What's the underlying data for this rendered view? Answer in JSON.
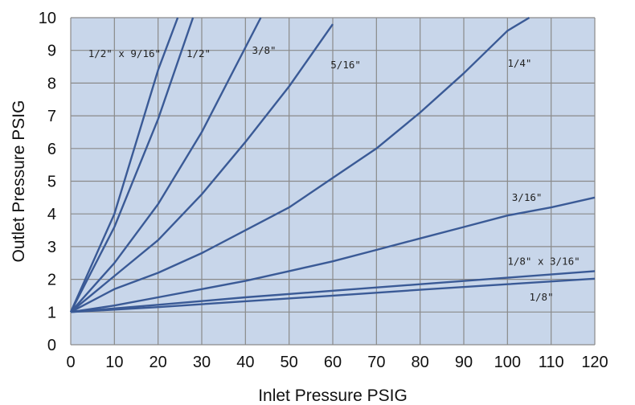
{
  "chart_data": {
    "type": "line",
    "title": "",
    "xlabel": "Inlet Pressure PSIG",
    "ylabel": "Outlet Pressure PSIG",
    "xlim": [
      0,
      120
    ],
    "ylim": [
      0,
      10
    ],
    "x_ticks": [
      0,
      10,
      20,
      30,
      40,
      50,
      60,
      70,
      80,
      90,
      100,
      110,
      120
    ],
    "y_ticks": [
      0,
      1,
      2,
      3,
      4,
      5,
      6,
      7,
      8,
      9,
      10
    ],
    "grid": true,
    "legend": "none",
    "plot_background": "#c8d6ea",
    "grid_color": "#8a8a8a",
    "line_color": "#3a5a96",
    "series": [
      {
        "name": "1/2\" x 9/16\"",
        "x": [
          0,
          10,
          20,
          24.5
        ],
        "y": [
          1,
          4.0,
          8.4,
          10
        ]
      },
      {
        "name": "1/2\"",
        "x": [
          0,
          10,
          20,
          28
        ],
        "y": [
          1,
          3.6,
          6.9,
          10
        ]
      },
      {
        "name": "3/8\"",
        "x": [
          0,
          10,
          20,
          30,
          43.5
        ],
        "y": [
          1,
          2.5,
          4.3,
          6.5,
          10
        ]
      },
      {
        "name": "5/16\"",
        "x": [
          0,
          10,
          20,
          30,
          40,
          50,
          60
        ],
        "y": [
          1,
          2.1,
          3.2,
          4.6,
          6.2,
          7.9,
          9.8
        ]
      },
      {
        "name": "1/4\"",
        "x": [
          0,
          10,
          20,
          30,
          40,
          50,
          60,
          70,
          80,
          90,
          100,
          105
        ],
        "y": [
          1,
          1.7,
          2.2,
          2.8,
          3.5,
          4.2,
          5.1,
          6.0,
          7.1,
          8.3,
          9.6,
          10
        ]
      },
      {
        "name": "3/16\"",
        "x": [
          0,
          10,
          20,
          30,
          40,
          50,
          60,
          70,
          80,
          90,
          100,
          110,
          120
        ],
        "y": [
          1,
          1.2,
          1.45,
          1.7,
          1.95,
          2.25,
          2.55,
          2.9,
          3.25,
          3.6,
          3.95,
          4.2,
          4.5
        ]
      },
      {
        "name": "1/8\" x 3/16\"",
        "x": [
          0,
          20,
          40,
          60,
          80,
          100,
          120
        ],
        "y": [
          1,
          1.22,
          1.45,
          1.65,
          1.85,
          2.05,
          2.25
        ]
      },
      {
        "name": "1/8\"",
        "x": [
          0,
          20,
          40,
          60,
          80,
          100,
          120
        ],
        "y": [
          1,
          1.15,
          1.33,
          1.5,
          1.68,
          1.85,
          2.02
        ]
      }
    ],
    "annotations": [
      {
        "text": "1/2\" x 9/16\"",
        "x": 4,
        "y": 8.8
      },
      {
        "text": "1/2\"",
        "x": 26.5,
        "y": 8.8
      },
      {
        "text": "3/8\"",
        "x": 41.5,
        "y": 8.9
      },
      {
        "text": "5/16\"",
        "x": 59.5,
        "y": 8.45
      },
      {
        "text": "1/4\"",
        "x": 100,
        "y": 8.5
      },
      {
        "text": "3/16\"",
        "x": 101,
        "y": 4.4
      },
      {
        "text": "1/8\" x 3/16\"",
        "x": 100,
        "y": 2.45
      },
      {
        "text": "1/8\"",
        "x": 105,
        "y": 1.35
      }
    ]
  }
}
